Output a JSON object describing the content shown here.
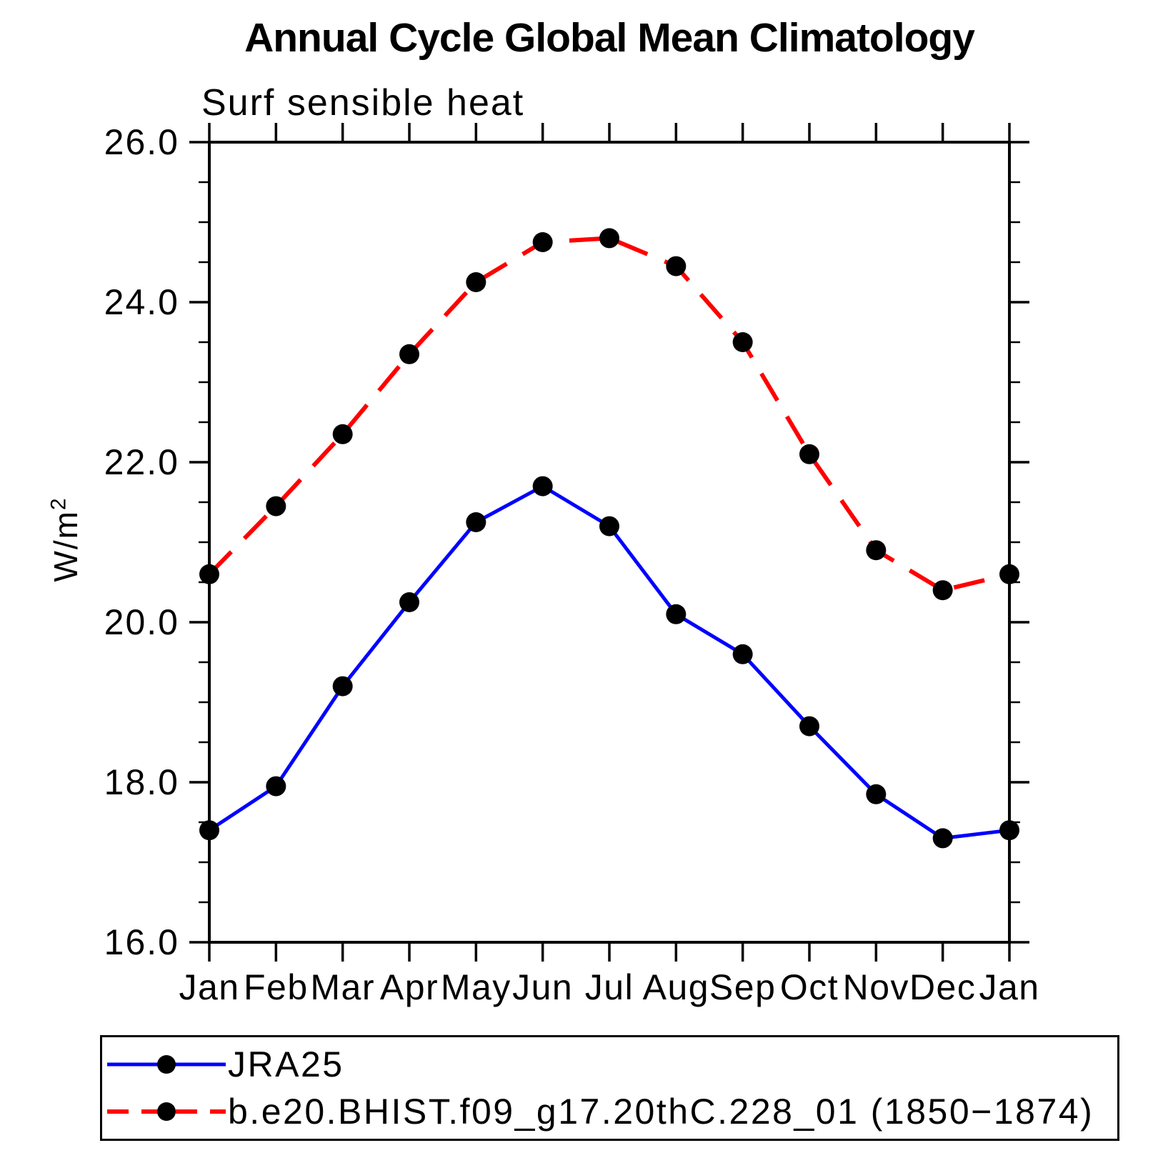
{
  "chart_data": {
    "type": "line",
    "title": "Annual Cycle Global Mean Climatology",
    "subtitle": "Surf sensible heat",
    "ylabel_base": "W/m",
    "ylabel_exp": "2",
    "xlabel": "",
    "x_categories": [
      "Jan",
      "Feb",
      "Mar",
      "Apr",
      "May",
      "Jun",
      "Jul",
      "Aug",
      "Sep",
      "Oct",
      "Nov",
      "Dec",
      "Jan"
    ],
    "ylim": [
      16.0,
      26.0
    ],
    "y_major_ticks": [
      {
        "value": 26.0,
        "label": "26.0"
      },
      {
        "value": 24.0,
        "label": "24.0"
      },
      {
        "value": 22.0,
        "label": "22.0"
      },
      {
        "value": 20.0,
        "label": "20.0"
      },
      {
        "value": 18.0,
        "label": "18.0"
      },
      {
        "value": 16.0,
        "label": "16.0"
      }
    ],
    "y_minor_step": 0.5,
    "grid": false,
    "legend_position": "bottom",
    "marker": "circle",
    "marker_color": "#000000",
    "frame_color": "#000000",
    "series": [
      {
        "name": "JRA25",
        "color": "#0000ff",
        "line_style": "solid",
        "values": [
          17.4,
          17.95,
          19.2,
          20.25,
          21.25,
          21.7,
          21.2,
          20.1,
          19.6,
          18.7,
          17.85,
          17.3,
          17.4
        ]
      },
      {
        "name": "b.e20.BHIST.f09_g17.20thC.228_01 (1850−1874)",
        "color": "#ff0000",
        "line_style": "dashed",
        "values": [
          20.6,
          21.45,
          22.35,
          23.35,
          24.25,
          24.75,
          24.8,
          24.45,
          23.5,
          22.1,
          20.9,
          20.4,
          20.6
        ]
      }
    ]
  }
}
